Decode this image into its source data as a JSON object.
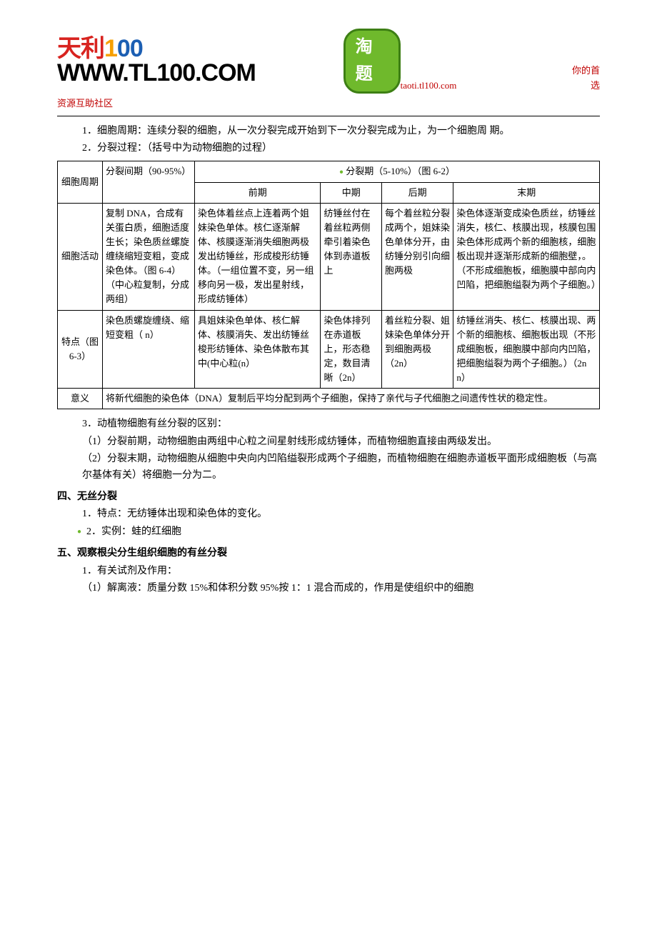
{
  "header": {
    "logo_tl_text1": "天利",
    "logo_tl_text2": "1",
    "logo_tl_text3": "0",
    "logo_tl_text4": "0",
    "logo_tl_url": "WWW.TL100.COM",
    "logo_tt": "淘题",
    "url": "taoti.tl100.com",
    "choice": "你的首选",
    "community": "资源互助社区"
  },
  "intro": {
    "item1": "1．细胞周期：连续分裂的细胞，从一次分裂完成开始到下一次分裂完成为止，为一个细胞周 期。",
    "item2": "2．分裂过程：（括号中为动物细胞的过程）"
  },
  "table": {
    "row_header_cycle": "细胞周期",
    "interphase_header": "分裂间期（90-95%）",
    "mitosis_header": "分裂期（5-10%）（图 6-2）",
    "phase_pro": "前期",
    "phase_meta": "中期",
    "phase_ana": "后期",
    "phase_telo": "末期",
    "row_activity_label": "细胞活动",
    "activity_interphase": "复制 DNA，合成有关蛋白质，细胞适度生长；染色质丝螺旋缠绕缩短变粗，变成染色体。（图 6-4）（中心粒复制，分成两组）",
    "activity_pro": "染色体着丝点上连着两个姐妹染色单体。核仁逐渐解体、核膜逐渐消失细胞两极发出纺锤丝，形成梭形纺锤体。（一组位置不变，另一组移向另一极，发出星射线，形成纺锤体）",
    "activity_meta": "纺锤丝付在着丝粒两侧牵引着染色体到赤道板上",
    "activity_ana": "每个着丝粒分裂成两个，姐妹染色单体分开，由纺锤分别引向细胞两极",
    "activity_telo": "染色体逐渐变成染色质丝，纺锤丝消失，核仁、核膜出现，核膜包围染色体形成两个新的细胞核，细胞板出现并逐渐形成新的细胞壁，。（不形成细胞板，细胞膜中部向内凹陷，把细胞缢裂为两个子细胞。）",
    "row_feature_label": "特点（图 6-3）",
    "feature_interphase": "染色质螺旋缠绕、缩短变粗（ n）",
    "feature_pro": "具姐妹染色单体、核仁解体、核膜消失、发出纺锤丝梭形纺锤体、染色体散布其中(中心粒(n）",
    "feature_meta": "染色体排列在赤道板上，形态稳定，数目清晰（2n）",
    "feature_ana": "着丝粒分裂、姐妹染色单体分开到细胞两极（2n）",
    "feature_telo": "纺锤丝消失、核仁、核膜出现、两个新的细胞核、细胞板出现（不形成细胞板，细胞膜中部向内凹陷，把细胞缢裂为两个子细胞。）（2n n）",
    "row_sig_label": "意义",
    "significance": "将新代细胞的染色体（DNA）复制后平均分配到两个子细胞，保持了亲代与子代细胞之间遗传性状的稳定性。"
  },
  "after_table": {
    "item3": "3．动植物细胞有丝分裂的区别：",
    "item3_1": "（1）分裂前期，动物细胞由两组中心粒之间星射线形成纺锤体，而植物细胞直接由两级发出。",
    "item3_2": "（2）分裂末期，动物细胞从细胞中央向内凹陷缢裂形成两个子细胞，而植物细胞在细胞赤道板平面形成细胞板（与高尔基体有关）将细胞一分为二。"
  },
  "section4": {
    "head": "四、无丝分裂",
    "item1": "1．特点：无纺锤体出现和染色体的变化。",
    "item2": "2．实例：蛙的红细胞"
  },
  "section5": {
    "head": "五、观察根尖分生组织细胞的有丝分裂",
    "item1": "1．有关试剂及作用：",
    "item1_1": "（1）解离液：质量分数 15%和体积分数 95%按 1：1 混合而成的，作用是使组织中的细胞"
  },
  "colors": {
    "red": "#c00000",
    "green": "#6fb92c",
    "logo_red": "#d8231f",
    "logo_orange": "#f7a000",
    "logo_blue": "#1c5fb3"
  }
}
